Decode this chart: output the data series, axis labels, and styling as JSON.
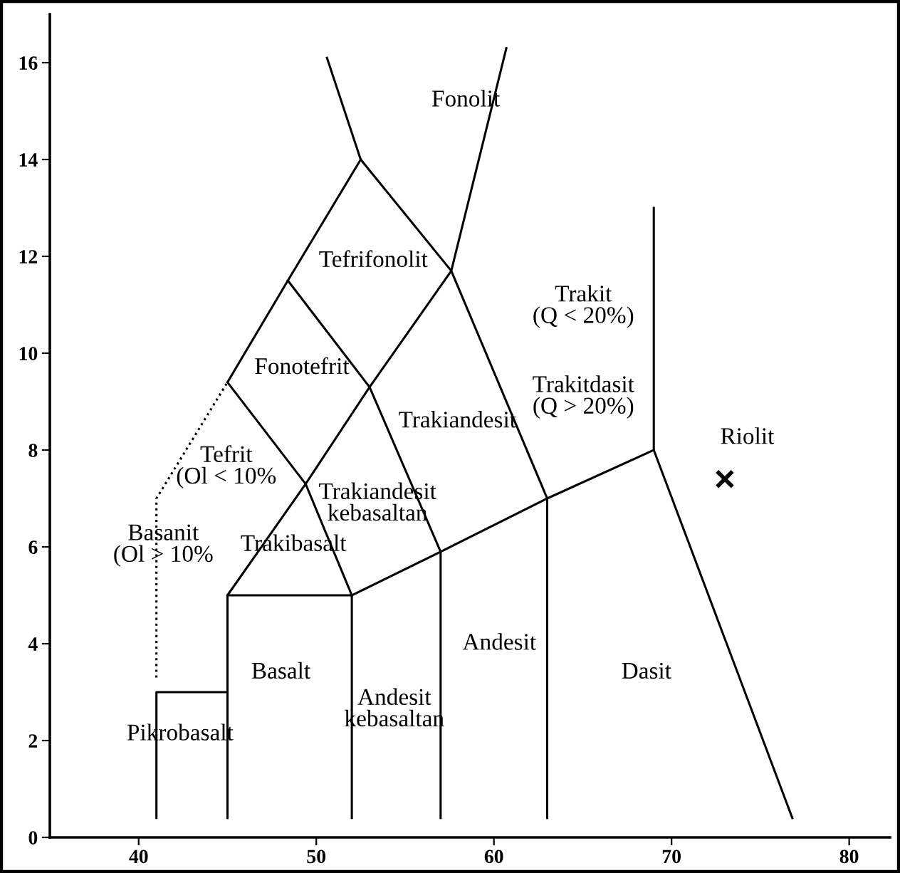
{
  "chart_data": {
    "type": "line",
    "xlim": [
      35,
      82.3
    ],
    "ylim": [
      0,
      17
    ],
    "xticks": [
      40,
      50,
      60,
      70,
      80
    ],
    "yticks": [
      0,
      2,
      4,
      6,
      8,
      10,
      12,
      14,
      16
    ],
    "series": [
      {
        "color": "#000000",
        "x": [
          41,
          41,
          45
        ],
        "values": [
          0.4,
          3,
          3
        ]
      },
      {
        "color": "#000000",
        "x": [
          45,
          45,
          52,
          52
        ],
        "values": [
          0.4,
          5,
          5,
          0.4
        ]
      },
      {
        "color": "#000000",
        "x": [
          52,
          57,
          63,
          69
        ],
        "values": [
          5,
          5.9,
          7,
          8
        ]
      },
      {
        "color": "#000000",
        "x": [
          69,
          69,
          76.8
        ],
        "values": [
          13,
          8,
          0.4
        ]
      },
      {
        "color": "#000000",
        "x": [
          45,
          49.4,
          53,
          57.6,
          60.7
        ],
        "values": [
          5,
          7.3,
          9.3,
          11.7,
          16.3
        ]
      },
      {
        "color": "#000000",
        "x": [
          52,
          49.4,
          45
        ],
        "values": [
          5,
          7.3,
          9.4
        ]
      },
      {
        "color": "#000000",
        "x": [
          57,
          57,
          53,
          48.4
        ],
        "values": [
          0.4,
          5.9,
          9.3,
          11.5
        ]
      },
      {
        "color": "#000000",
        "x": [
          63,
          63,
          57.6,
          52.5,
          50.6
        ],
        "values": [
          0.4,
          7,
          11.7,
          14,
          16.1
        ]
      },
      {
        "color": "#000000",
        "x": [
          45,
          48.4,
          52.5
        ],
        "values": [
          9.4,
          11.5,
          14
        ]
      },
      {
        "color": "#000000",
        "line_style": "dotted",
        "x": [
          41,
          41,
          45
        ],
        "values": [
          3.3,
          7,
          9.4
        ]
      },
      {
        "type": "scatter",
        "color": "#000000",
        "marker": "cross",
        "x": [
          73.0
        ],
        "values": [
          7.4
        ]
      }
    ],
    "annotations": [
      "Fonolit",
      "Tefrifonolit",
      "Trakit\n(Q < 20%)",
      "Fonotefrit",
      "Trakitdasit\n(Q > 20%)",
      "Trakiandesit",
      "Tefrit\n(Ol < 10%",
      "Trakiandesit\nkebasaltan",
      "Basanit\n(Ol > 10%",
      "Trakibasalt",
      "Riolit",
      "Dasit",
      "Andesit",
      "Basalt",
      "Andesit\nkebasaltan",
      "Pikrobasalt"
    ]
  }
}
